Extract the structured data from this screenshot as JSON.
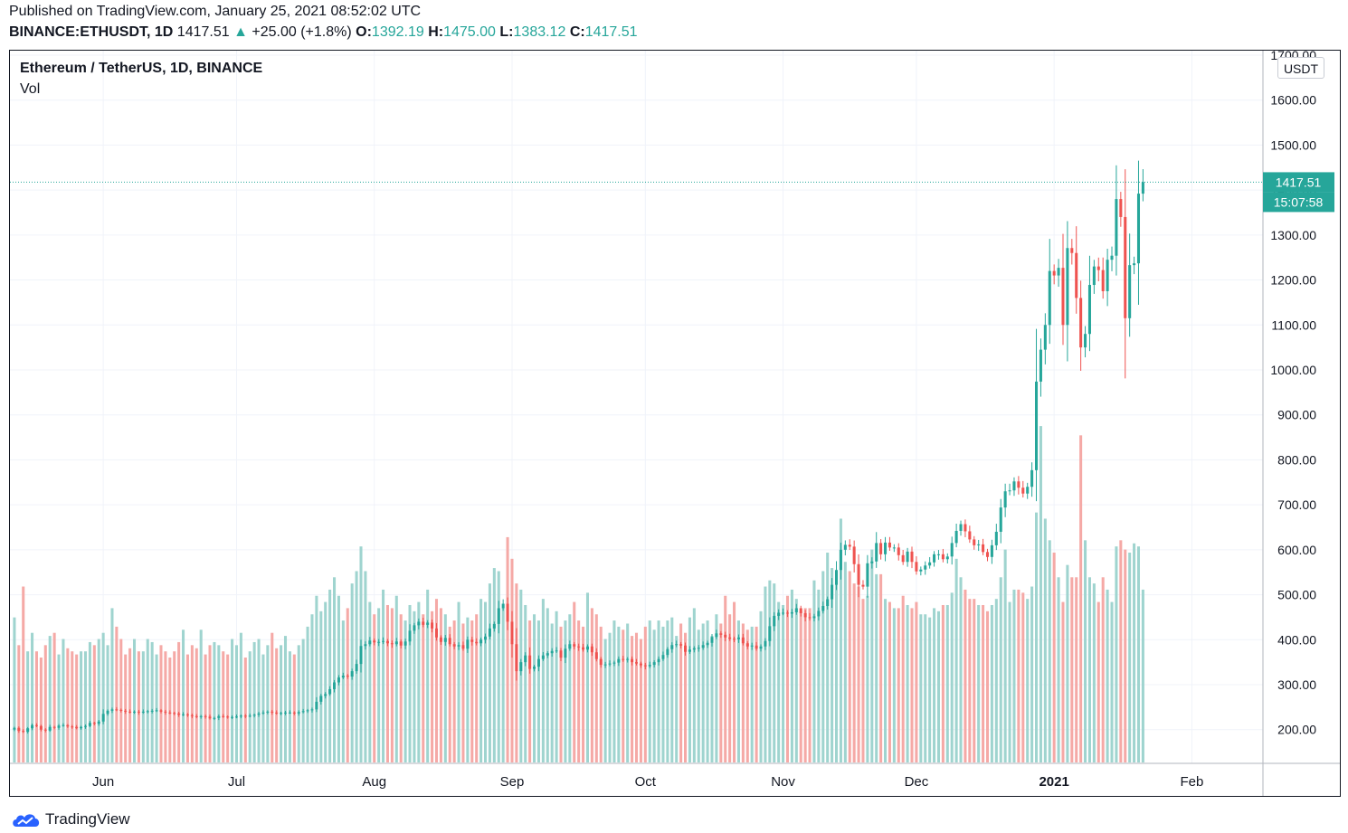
{
  "header": {
    "published": "Published on TradingView.com, January 25, 2021 08:52:02 UTC",
    "symbol": "BINANCE:ETHUSDT, 1D",
    "last": "1417.51",
    "change_arrow": "▲",
    "change": "+25.00 (+1.8%)",
    "o_label": "O:",
    "o_value": "1392.19",
    "h_label": "H:",
    "h_value": "1475.00",
    "l_label": "L:",
    "l_value": "1383.12",
    "c_label": "C:",
    "c_value": "1417.51"
  },
  "legend": {
    "title": "Ethereum / TetherUS, 1D, BINANCE",
    "vol": "Vol"
  },
  "unit_button": "USDT",
  "price_tag": "1417.51",
  "countdown_tag": "15:07:58",
  "footer_logo": "TradingView",
  "colors": {
    "up": "#26a69a",
    "down": "#ef5350",
    "vol_up": "#9fd4cf",
    "vol_down": "#f5a9a6",
    "tag_bg": "#26a69a",
    "grid": "#f0f3fa",
    "text": "#131722"
  },
  "chart_data": {
    "type": "candlestick",
    "title": "Ethereum / TetherUS, 1D, BINANCE",
    "yaxis_ticks": [
      "200.00",
      "300.00",
      "400.00",
      "500.00",
      "600.00",
      "700.00",
      "800.00",
      "900.00",
      "1000.00",
      "1100.00",
      "1200.00",
      "1300.00",
      "1400.00",
      "1500.00",
      "1600.00",
      "1700.00"
    ],
    "ylim": [
      125,
      1710
    ],
    "xaxis_ticks": [
      "Jun",
      "Jul",
      "Aug",
      "Sep",
      "Oct",
      "Nov",
      "Dec",
      "2021",
      "Feb"
    ],
    "bold_xticks": [
      "2021"
    ],
    "x_start": "2020-05-12",
    "xlim": [
      "2020-05-11",
      "2021-02-17"
    ],
    "tick_dates": [
      "2020-06-01",
      "2020-07-01",
      "2020-08-01",
      "2020-09-01",
      "2020-10-01",
      "2020-11-01",
      "2020-12-01",
      "2021-01-01",
      "2021-02-01"
    ],
    "closes": [
      204,
      197,
      195,
      203,
      210,
      208,
      200,
      198,
      206,
      204,
      209,
      210,
      207,
      206,
      203,
      206,
      208,
      215,
      213,
      218,
      235,
      242,
      245,
      244,
      242,
      240,
      239,
      240,
      238,
      240,
      241,
      242,
      243,
      240,
      238,
      237,
      236,
      233,
      234,
      232,
      230,
      228,
      230,
      229,
      225,
      226,
      230,
      229,
      228,
      228,
      229,
      231,
      230,
      231,
      233,
      236,
      238,
      240,
      238,
      236,
      237,
      238,
      238,
      236,
      239,
      241,
      243,
      245,
      262,
      275,
      279,
      290,
      305,
      316,
      320,
      318,
      330,
      346,
      386,
      390,
      398,
      394,
      395,
      397,
      392,
      390,
      396,
      387,
      396,
      420,
      432,
      440,
      433,
      438,
      425,
      405,
      395,
      404,
      390,
      385,
      388,
      380,
      400,
      395,
      392,
      400,
      407,
      425,
      435,
      470,
      480,
      440,
      390,
      330,
      350,
      365,
      335,
      340,
      357,
      365,
      370,
      375,
      376,
      360,
      380,
      390,
      385,
      383,
      378,
      385,
      372,
      357,
      344,
      345,
      347,
      349,
      357,
      355,
      357,
      350,
      347,
      343,
      341,
      344,
      350,
      357,
      366,
      379,
      388,
      390,
      387,
      373,
      378,
      381,
      382,
      388,
      393,
      406,
      414,
      411,
      405,
      402,
      401,
      405,
      392,
      385,
      387,
      380,
      385,
      397,
      430,
      453,
      460,
      460,
      458,
      461,
      470,
      459,
      450,
      448,
      452,
      464,
      475,
      490,
      522,
      555,
      600,
      611,
      607,
      568,
      522,
      518,
      570,
      574,
      615,
      590,
      616,
      605,
      605,
      588,
      573,
      596,
      573,
      552,
      556,
      565,
      572,
      590,
      590,
      579,
      585,
      615,
      642,
      657,
      641,
      623,
      610,
      612,
      595,
      584,
      610,
      640,
      694,
      730,
      732,
      752,
      738,
      725,
      740,
      777,
      974,
      1045,
      1100,
      1220,
      1210,
      1227,
      1100,
      1271,
      1260,
      1160,
      1050,
      1080,
      1189,
      1230,
      1222,
      1175,
      1245,
      1254,
      1380,
      1340,
      1115,
      1233,
      1237,
      1392,
      1417.51
    ],
    "volumes": [
      235,
      190,
      285,
      180,
      210,
      180,
      170,
      190,
      205,
      210,
      175,
      200,
      185,
      180,
      175,
      180,
      180,
      195,
      190,
      200,
      210,
      190,
      250,
      220,
      200,
      175,
      185,
      200,
      180,
      180,
      200,
      195,
      175,
      190,
      180,
      170,
      180,
      195,
      215,
      175,
      190,
      185,
      215,
      175,
      190,
      195,
      190,
      180,
      175,
      200,
      190,
      210,
      170,
      180,
      195,
      200,
      175,
      190,
      210,
      185,
      190,
      205,
      180,
      175,
      190,
      200,
      220,
      240,
      270,
      245,
      260,
      280,
      300,
      270,
      230,
      250,
      290,
      310,
      350,
      310,
      260,
      240,
      250,
      280,
      255,
      250,
      270,
      240,
      230,
      255,
      245,
      260,
      240,
      280,
      245,
      265,
      250,
      240,
      220,
      230,
      260,
      225,
      235,
      230,
      240,
      265,
      260,
      290,
      315,
      310,
      250,
      365,
      330,
      290,
      280,
      255,
      230,
      240,
      230,
      265,
      250,
      225,
      245,
      220,
      230,
      240,
      260,
      230,
      220,
      275,
      250,
      240,
      220,
      200,
      210,
      230,
      220,
      215,
      225,
      205,
      210,
      200,
      220,
      230,
      215,
      230,
      220,
      230,
      235,
      205,
      225,
      210,
      235,
      250,
      215,
      225,
      230,
      205,
      240,
      225,
      270,
      240,
      260,
      230,
      225,
      215,
      220,
      220,
      245,
      285,
      295,
      290,
      260,
      255,
      270,
      280,
      265,
      245,
      250,
      250,
      295,
      280,
      310,
      340,
      315,
      295,
      395,
      325,
      310,
      290,
      285,
      265,
      270,
      345,
      305,
      305,
      265,
      260,
      250,
      250,
      270,
      255,
      250,
      260,
      240,
      240,
      235,
      250,
      245,
      255,
      255,
      275,
      330,
      300,
      280,
      265,
      265,
      255,
      255,
      245,
      255,
      265,
      300,
      345,
      260,
      280,
      280,
      275,
      265,
      285,
      405,
      545,
      395,
      360,
      340,
      300,
      260,
      320,
      300,
      300,
      530,
      360,
      300,
      290,
      260,
      300,
      280,
      260,
      350,
      360,
      345,
      340,
      355,
      350,
      280,
      205
    ],
    "last_price": 1417.51
  }
}
